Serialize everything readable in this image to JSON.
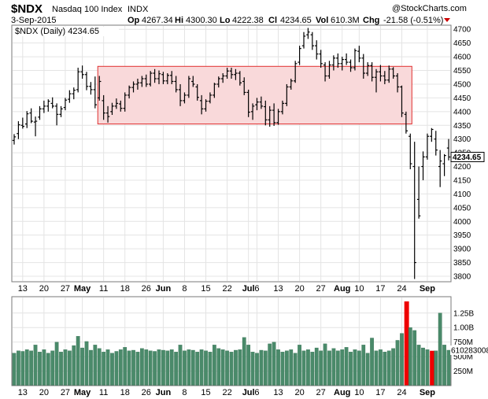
{
  "header": {
    "symbol": "$NDX",
    "name": "Nasdaq 100 Index",
    "exchange": "INDX",
    "date": "3-Sep-2015",
    "op_label": "Op",
    "op_value": "4267.34",
    "hi_label": "Hi",
    "hi_value": "4300.30",
    "lo_label": "Lo",
    "lo_value": "4222.38",
    "cl_label": "Cl",
    "cl_value": "4234.65",
    "vol_label": "Vol",
    "vol_value": "610.3M",
    "chg_label": "Chg",
    "chg_value": "-21.58 (-0.51%)",
    "watermark": "@StockCharts.com",
    "legend": "$NDX (Daily) 4234.65"
  },
  "colors": {
    "price_bar": "#000000",
    "volume_bar": "#4a8a6a",
    "volume_spike": "#ee0000",
    "highlight_fill": "#f9d9da",
    "highlight_stroke": "#e03030",
    "down_arrow": "#cc0000",
    "grid": "#e4e4e4"
  },
  "chart_data": {
    "type": "ohlc",
    "price_axis": {
      "ylim": [
        3780,
        4715
      ],
      "ticks": [
        3800,
        3850,
        3900,
        3950,
        4000,
        4050,
        4100,
        4150,
        4200,
        4250,
        4300,
        4350,
        4400,
        4450,
        4500,
        4550,
        4600,
        4650,
        4700
      ],
      "last_value_label": "4234.65"
    },
    "volume_axis": {
      "ticks": [
        {
          "label": "250M",
          "value": 250
        },
        {
          "label": "500M",
          "value": 500
        },
        {
          "label": "750M",
          "value": 750
        },
        {
          "label": "1.00B",
          "value": 1000
        },
        {
          "label": "1.25B",
          "value": 1250
        }
      ],
      "last_value_label": "610283008",
      "ymax": 1450
    },
    "x_labels": [
      "13",
      "20",
      "27",
      "May",
      "11",
      "18",
      "26",
      "Jun",
      "8",
      "15",
      "22",
      "Jul",
      "6",
      "13",
      "20",
      "27",
      "Aug",
      "10",
      "17",
      "24",
      "Sep"
    ],
    "x_label_index": [
      2,
      7,
      12,
      16,
      21,
      26,
      31,
      35,
      40,
      45,
      50,
      55,
      57,
      62,
      67,
      72,
      77,
      81,
      86,
      91,
      97
    ],
    "x_label_bold": [
      false,
      false,
      false,
      true,
      false,
      false,
      false,
      true,
      false,
      false,
      false,
      true,
      false,
      false,
      false,
      false,
      true,
      false,
      false,
      false,
      true
    ],
    "highlight_box": {
      "start_index": 20,
      "end_index": 93,
      "low": 4355,
      "high": 4565
    },
    "spike_indices": [
      92,
      98
    ],
    "bars": [
      {
        "o": 4295,
        "h": 4318,
        "l": 4280,
        "c": 4308,
        "v": 560
      },
      {
        "o": 4320,
        "h": 4365,
        "l": 4300,
        "c": 4352,
        "v": 600
      },
      {
        "o": 4350,
        "h": 4378,
        "l": 4338,
        "c": 4346,
        "v": 590
      },
      {
        "o": 4355,
        "h": 4402,
        "l": 4340,
        "c": 4392,
        "v": 620
      },
      {
        "o": 4395,
        "h": 4412,
        "l": 4358,
        "c": 4365,
        "v": 600
      },
      {
        "o": 4362,
        "h": 4382,
        "l": 4310,
        "c": 4365,
        "v": 700
      },
      {
        "o": 4380,
        "h": 4420,
        "l": 4370,
        "c": 4410,
        "v": 580
      },
      {
        "o": 4410,
        "h": 4440,
        "l": 4395,
        "c": 4420,
        "v": 620
      },
      {
        "o": 4420,
        "h": 4445,
        "l": 4400,
        "c": 4438,
        "v": 560
      },
      {
        "o": 4430,
        "h": 4452,
        "l": 4412,
        "c": 4420,
        "v": 600
      },
      {
        "o": 4420,
        "h": 4430,
        "l": 4350,
        "c": 4390,
        "v": 750
      },
      {
        "o": 4390,
        "h": 4420,
        "l": 4380,
        "c": 4410,
        "v": 580
      },
      {
        "o": 4415,
        "h": 4450,
        "l": 4405,
        "c": 4442,
        "v": 620
      },
      {
        "o": 4445,
        "h": 4478,
        "l": 4432,
        "c": 4465,
        "v": 600
      },
      {
        "o": 4465,
        "h": 4488,
        "l": 4445,
        "c": 4478,
        "v": 690
      },
      {
        "o": 4480,
        "h": 4560,
        "l": 4470,
        "c": 4545,
        "v": 850
      },
      {
        "o": 4545,
        "h": 4568,
        "l": 4520,
        "c": 4535,
        "v": 650
      },
      {
        "o": 4535,
        "h": 4545,
        "l": 4478,
        "c": 4492,
        "v": 760
      },
      {
        "o": 4492,
        "h": 4508,
        "l": 4462,
        "c": 4480,
        "v": 610
      },
      {
        "o": 4480,
        "h": 4528,
        "l": 4412,
        "c": 4425,
        "v": 700
      },
      {
        "o": 4450,
        "h": 4530,
        "l": 4440,
        "c": 4510,
        "v": 640
      },
      {
        "o": 4440,
        "h": 4460,
        "l": 4370,
        "c": 4395,
        "v": 580
      },
      {
        "o": 4395,
        "h": 4420,
        "l": 4360,
        "c": 4382,
        "v": 620
      },
      {
        "o": 4400,
        "h": 4432,
        "l": 4388,
        "c": 4420,
        "v": 560
      },
      {
        "o": 4420,
        "h": 4448,
        "l": 4410,
        "c": 4430,
        "v": 590
      },
      {
        "o": 4428,
        "h": 4440,
        "l": 4400,
        "c": 4412,
        "v": 620
      },
      {
        "o": 4412,
        "h": 4470,
        "l": 4400,
        "c": 4460,
        "v": 660
      },
      {
        "o": 4460,
        "h": 4495,
        "l": 4448,
        "c": 4488,
        "v": 600
      },
      {
        "o": 4488,
        "h": 4510,
        "l": 4470,
        "c": 4500,
        "v": 610
      },
      {
        "o": 4500,
        "h": 4520,
        "l": 4480,
        "c": 4505,
        "v": 580
      },
      {
        "o": 4505,
        "h": 4530,
        "l": 4490,
        "c": 4520,
        "v": 640
      },
      {
        "o": 4520,
        "h": 4535,
        "l": 4490,
        "c": 4500,
        "v": 620
      },
      {
        "o": 4500,
        "h": 4548,
        "l": 4492,
        "c": 4540,
        "v": 600
      },
      {
        "o": 4540,
        "h": 4555,
        "l": 4505,
        "c": 4520,
        "v": 590
      },
      {
        "o": 4520,
        "h": 4550,
        "l": 4500,
        "c": 4538,
        "v": 620
      },
      {
        "o": 4535,
        "h": 4545,
        "l": 4500,
        "c": 4512,
        "v": 610
      },
      {
        "o": 4512,
        "h": 4540,
        "l": 4500,
        "c": 4532,
        "v": 600
      },
      {
        "o": 4532,
        "h": 4548,
        "l": 4500,
        "c": 4510,
        "v": 620
      },
      {
        "o": 4510,
        "h": 4530,
        "l": 4470,
        "c": 4480,
        "v": 580
      },
      {
        "o": 4480,
        "h": 4500,
        "l": 4420,
        "c": 4440,
        "v": 700
      },
      {
        "o": 4440,
        "h": 4470,
        "l": 4430,
        "c": 4460,
        "v": 600
      },
      {
        "o": 4460,
        "h": 4530,
        "l": 4450,
        "c": 4520,
        "v": 620
      },
      {
        "o": 4510,
        "h": 4530,
        "l": 4490,
        "c": 4500,
        "v": 610
      },
      {
        "o": 4490,
        "h": 4500,
        "l": 4440,
        "c": 4452,
        "v": 580
      },
      {
        "o": 4440,
        "h": 4460,
        "l": 4390,
        "c": 4410,
        "v": 620
      },
      {
        "o": 4410,
        "h": 4445,
        "l": 4400,
        "c": 4438,
        "v": 600
      },
      {
        "o": 4438,
        "h": 4470,
        "l": 4430,
        "c": 4460,
        "v": 580
      },
      {
        "o": 4460,
        "h": 4505,
        "l": 4450,
        "c": 4500,
        "v": 700
      },
      {
        "o": 4500,
        "h": 4528,
        "l": 4488,
        "c": 4520,
        "v": 640
      },
      {
        "o": 4520,
        "h": 4540,
        "l": 4505,
        "c": 4530,
        "v": 620
      },
      {
        "o": 4530,
        "h": 4560,
        "l": 4520,
        "c": 4548,
        "v": 600
      },
      {
        "o": 4548,
        "h": 4560,
        "l": 4520,
        "c": 4535,
        "v": 580
      },
      {
        "o": 4535,
        "h": 4555,
        "l": 4515,
        "c": 4540,
        "v": 610
      },
      {
        "o": 4540,
        "h": 4548,
        "l": 4495,
        "c": 4505,
        "v": 620
      },
      {
        "o": 4510,
        "h": 4525,
        "l": 4460,
        "c": 4470,
        "v": 830
      },
      {
        "o": 4470,
        "h": 4480,
        "l": 4380,
        "c": 4398,
        "v": 700
      },
      {
        "o": 4400,
        "h": 4430,
        "l": 4370,
        "c": 4420,
        "v": 580
      },
      {
        "o": 4425,
        "h": 4450,
        "l": 4405,
        "c": 4435,
        "v": 560
      },
      {
        "o": 4435,
        "h": 4455,
        "l": 4410,
        "c": 4420,
        "v": 610
      },
      {
        "o": 4418,
        "h": 4440,
        "l": 4350,
        "c": 4370,
        "v": 600
      },
      {
        "o": 4370,
        "h": 4420,
        "l": 4345,
        "c": 4405,
        "v": 720
      },
      {
        "o": 4405,
        "h": 4430,
        "l": 4348,
        "c": 4360,
        "v": 750
      },
      {
        "o": 4360,
        "h": 4410,
        "l": 4352,
        "c": 4400,
        "v": 620
      },
      {
        "o": 4400,
        "h": 4440,
        "l": 4390,
        "c": 4430,
        "v": 580
      },
      {
        "o": 4430,
        "h": 4500,
        "l": 4420,
        "c": 4490,
        "v": 600
      },
      {
        "o": 4490,
        "h": 4520,
        "l": 4480,
        "c": 4512,
        "v": 620
      },
      {
        "o": 4512,
        "h": 4585,
        "l": 4505,
        "c": 4575,
        "v": 560
      },
      {
        "o": 4580,
        "h": 4640,
        "l": 4570,
        "c": 4630,
        "v": 700
      },
      {
        "o": 4640,
        "h": 4690,
        "l": 4630,
        "c": 4675,
        "v": 600
      },
      {
        "o": 4680,
        "h": 4705,
        "l": 4665,
        "c": 4690,
        "v": 620
      },
      {
        "o": 4680,
        "h": 4690,
        "l": 4625,
        "c": 4640,
        "v": 580
      },
      {
        "o": 4640,
        "h": 4660,
        "l": 4590,
        "c": 4610,
        "v": 650
      },
      {
        "o": 4610,
        "h": 4625,
        "l": 4560,
        "c": 4575,
        "v": 600
      },
      {
        "o": 4570,
        "h": 4580,
        "l": 4510,
        "c": 4530,
        "v": 720
      },
      {
        "o": 4530,
        "h": 4585,
        "l": 4520,
        "c": 4570,
        "v": 600
      },
      {
        "o": 4570,
        "h": 4605,
        "l": 4550,
        "c": 4595,
        "v": 640
      },
      {
        "o": 4595,
        "h": 4612,
        "l": 4560,
        "c": 4575,
        "v": 600
      },
      {
        "o": 4575,
        "h": 4600,
        "l": 4550,
        "c": 4590,
        "v": 620
      },
      {
        "o": 4590,
        "h": 4612,
        "l": 4570,
        "c": 4580,
        "v": 660
      },
      {
        "o": 4580,
        "h": 4590,
        "l": 4545,
        "c": 4560,
        "v": 580
      },
      {
        "o": 4560,
        "h": 4630,
        "l": 4550,
        "c": 4622,
        "v": 620
      },
      {
        "o": 4620,
        "h": 4640,
        "l": 4580,
        "c": 4595,
        "v": 600
      },
      {
        "o": 4595,
        "h": 4610,
        "l": 4520,
        "c": 4540,
        "v": 700
      },
      {
        "o": 4540,
        "h": 4580,
        "l": 4530,
        "c": 4568,
        "v": 560
      },
      {
        "o": 4568,
        "h": 4580,
        "l": 4510,
        "c": 4525,
        "v": 820
      },
      {
        "o": 4525,
        "h": 4555,
        "l": 4470,
        "c": 4545,
        "v": 600
      },
      {
        "o": 4545,
        "h": 4570,
        "l": 4510,
        "c": 4530,
        "v": 620
      },
      {
        "o": 4530,
        "h": 4548,
        "l": 4500,
        "c": 4515,
        "v": 580
      },
      {
        "o": 4515,
        "h": 4568,
        "l": 4505,
        "c": 4555,
        "v": 600
      },
      {
        "o": 4555,
        "h": 4562,
        "l": 4520,
        "c": 4530,
        "v": 640
      },
      {
        "o": 4530,
        "h": 4540,
        "l": 4470,
        "c": 4490,
        "v": 780
      },
      {
        "o": 4490,
        "h": 4495,
        "l": 4380,
        "c": 4395,
        "v": 900
      },
      {
        "o": 4390,
        "h": 4400,
        "l": 4320,
        "c": 4330,
        "v": 1450
      },
      {
        "o": 4310,
        "h": 4320,
        "l": 4190,
        "c": 4210,
        "v": 1000
      },
      {
        "o": 4200,
        "h": 4290,
        "l": 3790,
        "c": 3850,
        "v": 950
      },
      {
        "o": 4080,
        "h": 4200,
        "l": 4010,
        "c": 4020,
        "v": 700
      },
      {
        "o": 4200,
        "h": 4255,
        "l": 4150,
        "c": 4235,
        "v": 650
      },
      {
        "o": 4235,
        "h": 4320,
        "l": 4225,
        "c": 4310,
        "v": 620
      },
      {
        "o": 4310,
        "h": 4340,
        "l": 4290,
        "c": 4335,
        "v": 600
      },
      {
        "o": 4300,
        "h": 4330,
        "l": 4240,
        "c": 4260,
        "v": 600
      },
      {
        "o": 4200,
        "h": 4260,
        "l": 4125,
        "c": 4220,
        "v": 1250
      },
      {
        "o": 4210,
        "h": 4245,
        "l": 4165,
        "c": 4240,
        "v": 700
      },
      {
        "o": 4267.34,
        "h": 4300.3,
        "l": 4222.38,
        "c": 4234.65,
        "v": 610.3
      }
    ]
  }
}
